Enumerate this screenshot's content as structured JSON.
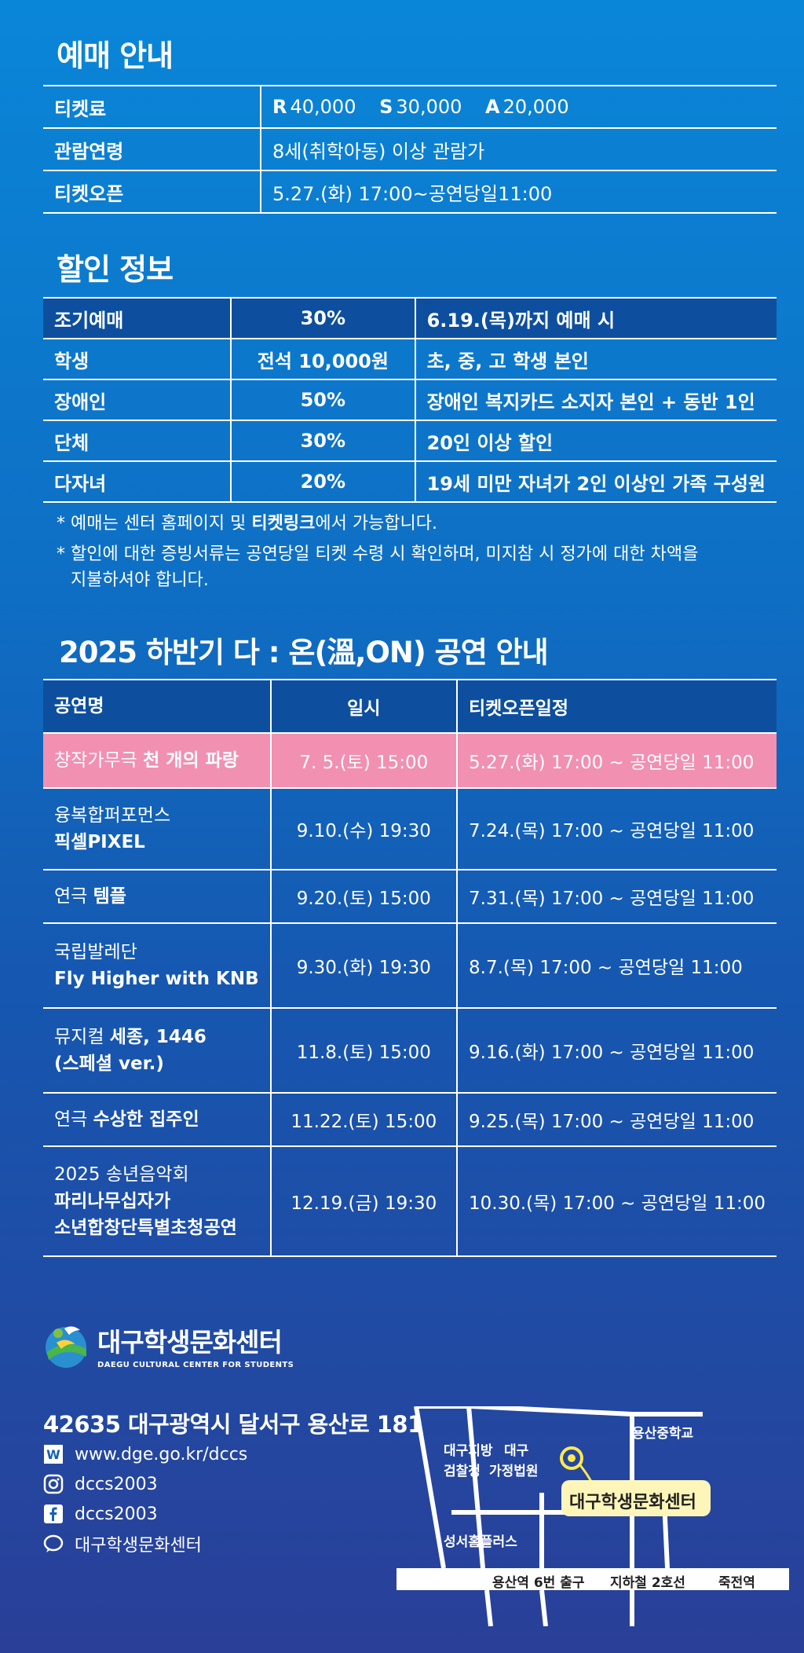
{
  "ticket": {
    "title": "예매 안내",
    "rows": [
      {
        "label": "티켓료",
        "prices": [
          {
            "grade": "R",
            "amount": "40,000"
          },
          {
            "grade": "S",
            "amount": "30,000"
          },
          {
            "grade": "A",
            "amount": "20,000"
          }
        ]
      },
      {
        "label": "관람연령",
        "value": "8세(취학아동) 이상 관람가"
      },
      {
        "label": "티켓오픈",
        "value": "5.27.(화) 17:00~공연당일11:00"
      }
    ]
  },
  "discount": {
    "title": "할인 정보",
    "rows": [
      {
        "type": "조기예매",
        "rate": "30%",
        "condition": "6.19.(목)까지 예매 시"
      },
      {
        "type": "학생",
        "rate": "전석 10,000원",
        "condition": "초, 중, 고 학생 본인"
      },
      {
        "type": "장애인",
        "rate": "50%",
        "condition": "장애인 복지카드 소지자 본인 + 동반 1인"
      },
      {
        "type": "단체",
        "rate": "30%",
        "condition": "20인 이상 할인"
      },
      {
        "type": "다자녀",
        "rate": "20%",
        "condition": "19세 미만 자녀가 2인 이상인 가족 구성원"
      }
    ],
    "note1_pre": "* 예매는 센터 홈페이지 및 ",
    "note1_bold": "티켓링크",
    "note1_post": "에서 가능합니다.",
    "note2_line1": "* 할인에 대한 증빙서류는 공연당일 티켓 수령 시 확인하며, 미지참 시 정가에 대한 차액을",
    "note2_line2": "지불하셔야 합니다."
  },
  "performances": {
    "title": "2025 하반기 다 : 온(溫,ON) 공연 안내",
    "headers": [
      "공연명",
      "일시",
      "티켓오픈일정"
    ],
    "rows": [
      {
        "line1_pre": "창작가무극 ",
        "line1_bold": "천 개의 파랑",
        "line2": "",
        "line3": "",
        "date": "7. 5.(토) 15:00",
        "open": "5.27.(화) 17:00 ~ 공연당일 11:00"
      },
      {
        "line1_pre": "융복합퍼포먼스",
        "line1_bold": "",
        "line2": "픽셀PIXEL",
        "line3": "",
        "date": "9.10.(수) 19:30",
        "open": "7.24.(목) 17:00 ~ 공연당일 11:00"
      },
      {
        "line1_pre": "연극 ",
        "line1_bold": "템플",
        "line2": "",
        "line3": "",
        "date": "9.20.(토) 15:00",
        "open": "7.31.(목) 17:00 ~ 공연당일 11:00"
      },
      {
        "line1_pre": "국립발레단",
        "line1_bold": "",
        "line2": "Fly Higher with KNB",
        "line3": "",
        "date": "9.30.(화) 19:30",
        "open": "8.7.(목) 17:00 ~ 공연당일 11:00"
      },
      {
        "line1_pre": "뮤지컬 ",
        "line1_bold": "세종, 1446",
        "line2": "(스페셜 ver.)",
        "line3": "",
        "date": "11.8.(토) 15:00",
        "open": "9.16.(화) 17:00 ~ 공연당일 11:00"
      },
      {
        "line1_pre": "연극 ",
        "line1_bold": "수상한 집주인",
        "line2": "",
        "line3": "",
        "date": "11.22.(토) 15:00",
        "open": "9.25.(목) 17:00 ~ 공연당일 11:00"
      },
      {
        "line1_pre": "2025 송년음악회",
        "line1_bold": "",
        "line2": "파리나무십자가",
        "line3": "소년합창단특별초청공연",
        "date": "12.19.(금) 19:30",
        "open": "10.30.(목) 17:00 ~ 공연당일 11:00"
      }
    ]
  },
  "center": {
    "name": "대구학생문화센터",
    "name_en": "DAEGU CULTURAL CENTER FOR STUDENTS",
    "address": "42635 대구광역시 달서구 용산로 181",
    "website": "www.dge.go.kr/dccs",
    "instagram": "dccs2003",
    "facebook": "dccs2003",
    "talk": "대구학생문화센터"
  },
  "map": {
    "prosecutor": "대구지방 검찰청",
    "prosecutor_l1": "대구지방",
    "prosecutor_l2": "검찰청",
    "court_l1": "대구",
    "court_l2": "가정법원",
    "school": "용산중학교",
    "center_label": "대구학생문화센터",
    "homeplus": "성서홈플러스",
    "exit": "용산역 6번 출구",
    "line": "지하철 2호선",
    "station": "죽전역"
  },
  "colors": {
    "pink": "#f190b0",
    "header": "#0d4f9e",
    "label_bg": "#fdf6b8"
  }
}
